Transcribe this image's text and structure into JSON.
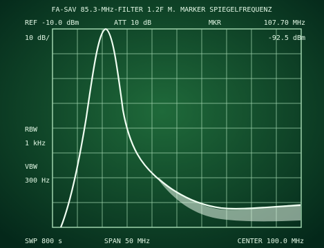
{
  "header": {
    "title": "FA-SAV 85.3-MHz-FILTER 1.2F M. MARKER SPIEGELFREQUENZ",
    "ref": "REF -10.0 dBm",
    "att": "ATT 10 dB",
    "mkr": "MKR",
    "mkr_freq": "107.70 MHz",
    "mkr_level": "-92.5 dBm",
    "scale": "10 dB/"
  },
  "side": {
    "rbw_label": "RBW",
    "rbw": "1 kHz",
    "vbw_label": "VBW",
    "vbw": "300 Hz"
  },
  "footer": {
    "sweep": "SWP 800 s",
    "span": "SPAN 50 MHz",
    "center": "CENTER 100.0 MHz"
  }
}
